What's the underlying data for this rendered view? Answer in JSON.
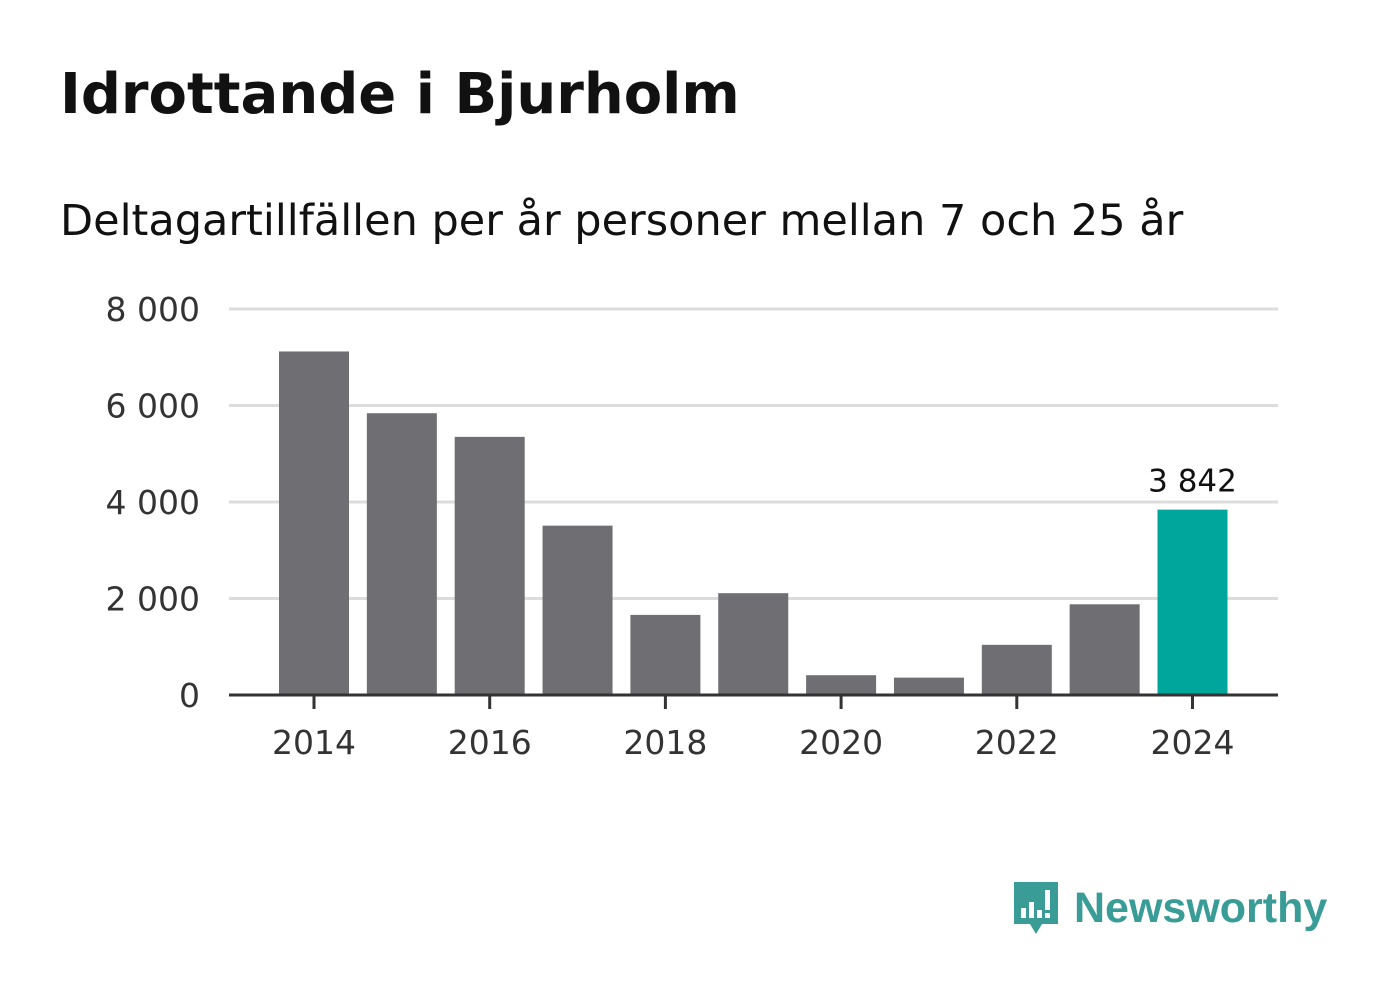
{
  "chart_data": {
    "type": "bar",
    "title": "Idrottande i Bjurholm",
    "subtitle": "Deltagartillfällen per år personer mellan 7 och 25 år",
    "categories": [
      "2014",
      "2015",
      "2016",
      "2017",
      "2018",
      "2019",
      "2020",
      "2021",
      "2022",
      "2023",
      "2024"
    ],
    "values": [
      7120,
      5840,
      5350,
      3510,
      1660,
      2110,
      410,
      360,
      1040,
      1880,
      3842
    ],
    "x_tick_labels": [
      "2014",
      "2016",
      "2018",
      "2020",
      "2022",
      "2024"
    ],
    "y_ticks": [
      0,
      2000,
      4000,
      6000,
      8000
    ],
    "y_tick_labels": [
      "0",
      "2 000",
      "4 000",
      "6 000",
      "8 000"
    ],
    "ylim": [
      0,
      8000
    ],
    "highlight_index": 10,
    "highlight_label": "3 842",
    "bar_color": "#6f6e73",
    "highlight_color": "#00a59b",
    "grid": true,
    "xlabel": "",
    "ylabel": ""
  },
  "brand": {
    "name": "Newsworthy",
    "icon": "newsworthy-logo-icon",
    "color": "#3a9c96"
  }
}
